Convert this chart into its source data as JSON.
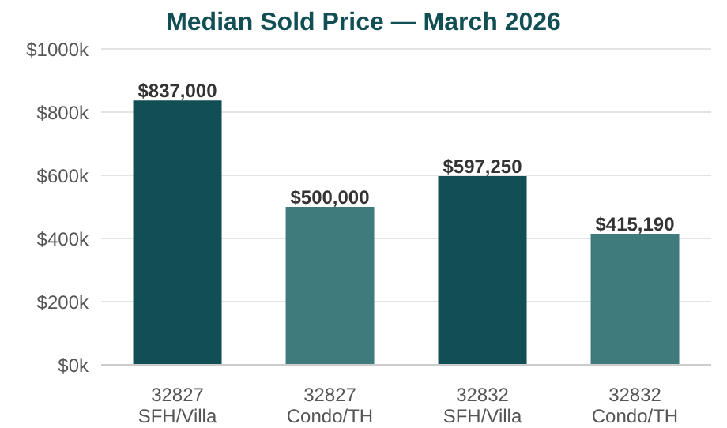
{
  "chart_data": {
    "type": "bar",
    "title": "Median Sold Price — March 2026",
    "categories": [
      "32827\nSFH/Villa",
      "32827\nCondo/TH",
      "32832\nSFH/Villa",
      "32832\nCondo/TH"
    ],
    "values": [
      837000,
      500000,
      597250,
      415190
    ],
    "colors": [
      "#114f55",
      "#3f7a7c",
      "#114f55",
      "#3f7a7c"
    ],
    "value_labels": [
      "$837,000",
      "$500,000",
      "$597,250",
      "$415,190"
    ],
    "ylim": [
      0,
      1000000
    ],
    "yticks": [
      {
        "value": 0,
        "label": "$0k"
      },
      {
        "value": 200000,
        "label": "$200k"
      },
      {
        "value": 400000,
        "label": "$400k"
      },
      {
        "value": 600000,
        "label": "$600k"
      },
      {
        "value": 800000,
        "label": "$800k"
      },
      {
        "value": 1000000,
        "label": "$1000k"
      }
    ],
    "grid": "y"
  }
}
